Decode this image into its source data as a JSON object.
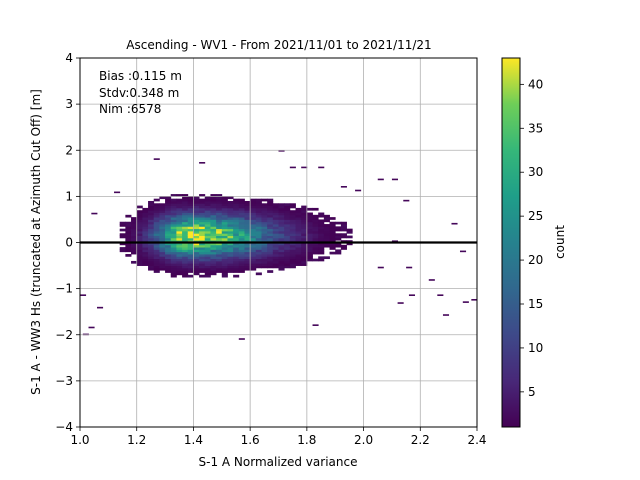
{
  "chart_data": {
    "type": "heatmap",
    "title": "Ascending - WV1 - From 2021/11/01 to 2021/11/21",
    "xlabel": "S-1 A Normalized variance",
    "ylabel": "S-1 A - WW3 Hs (truncated at Azimuth Cut Off) [m]",
    "xlim": [
      1.0,
      2.4
    ],
    "ylim": [
      -4,
      4
    ],
    "x_ticks": [
      "1.0",
      "1.2",
      "1.4",
      "1.6",
      "1.8",
      "2.0",
      "2.2",
      "2.4"
    ],
    "y_ticks": [
      "−4",
      "−3",
      "−2",
      "−1",
      "0",
      "1",
      "2",
      "3",
      "4"
    ],
    "x_tick_values": [
      1.0,
      1.2,
      1.4,
      1.6,
      1.8,
      2.0,
      2.2,
      2.4
    ],
    "y_tick_values": [
      -4,
      -3,
      -2,
      -1,
      0,
      1,
      2,
      3,
      4
    ],
    "grid": true,
    "annotations": [
      "Bias :0.115 m",
      "Stdv:0.348 m",
      "Nim :6578"
    ],
    "reference_line_y": 0,
    "colorbar": {
      "label": "count",
      "min": 1,
      "max": 43,
      "ticks": [
        "5",
        "10",
        "15",
        "20",
        "25",
        "30",
        "35",
        "40"
      ],
      "tick_values": [
        5,
        10,
        15,
        20,
        25,
        30,
        35,
        40
      ],
      "colormap": "viridis"
    },
    "distribution": {
      "peak_x": 1.38,
      "peak_y": 0.12,
      "peak_count": 43,
      "bin_width_x": 0.02,
      "bin_height_y": 0.05,
      "core_x_range": [
        1.12,
        1.95
      ],
      "core_y_range": [
        -1.0,
        1.2
      ],
      "outliers": [
        [
          1.0,
          -1.15
        ],
        [
          1.01,
          -2.0
        ],
        [
          1.03,
          -1.85
        ],
        [
          1.04,
          0.62
        ],
        [
          1.06,
          -1.42
        ],
        [
          1.12,
          1.08
        ],
        [
          1.26,
          1.8
        ],
        [
          1.42,
          1.72
        ],
        [
          1.7,
          1.98
        ],
        [
          1.74,
          1.62
        ],
        [
          1.78,
          1.62
        ],
        [
          1.84,
          1.62
        ],
        [
          1.82,
          -1.8
        ],
        [
          1.56,
          -2.1
        ],
        [
          1.92,
          1.2
        ],
        [
          1.97,
          1.12
        ],
        [
          2.05,
          1.36
        ],
        [
          2.1,
          1.36
        ],
        [
          2.14,
          0.9
        ],
        [
          2.12,
          -1.32
        ],
        [
          2.16,
          -1.15
        ],
        [
          2.26,
          -1.15
        ],
        [
          2.23,
          -0.82
        ],
        [
          2.28,
          -1.58
        ],
        [
          2.35,
          -1.3
        ],
        [
          2.38,
          -1.25
        ],
        [
          2.31,
          0.4
        ],
        [
          2.34,
          -0.2
        ],
        [
          2.15,
          -0.55
        ],
        [
          2.1,
          0.02
        ],
        [
          2.05,
          -0.55
        ]
      ]
    }
  }
}
